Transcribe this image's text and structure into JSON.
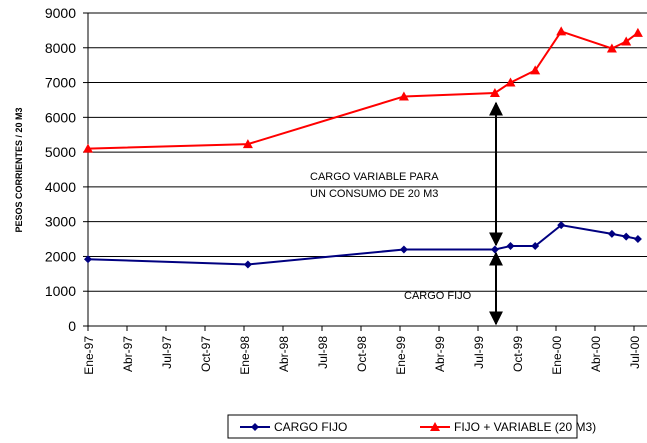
{
  "chart_data": {
    "type": "line",
    "y_label": "PESOS CORRIENTES / 20 M3",
    "annotations": [
      "CARGO  VARIABLE PARA",
      "UN CONSUMO DE 20 M3",
      "CARGO FIJO"
    ],
    "x": [
      0,
      12.3,
      24.3,
      31.3,
      32.5,
      34.4,
      36.4,
      40.3,
      41.4,
      42.3
    ],
    "series": [
      {
        "name": "CARGO FIJO",
        "color": "#000080",
        "marker": "diamond",
        "values": [
          1920,
          1770,
          2200,
          2200,
          2300,
          2300,
          2900,
          2650,
          2570,
          2500
        ]
      },
      {
        "name": "FIJO + VARIABLE (20 M3)",
        "color": "#ff0000",
        "marker": "triangle",
        "values": [
          5100,
          5230,
          6600,
          6700,
          7000,
          7350,
          8470,
          7980,
          8180,
          8430
        ]
      }
    ],
    "xlim": [
      0,
      43
    ],
    "xticks": [
      {
        "value": 0,
        "label": "Ene-97"
      },
      {
        "value": 3,
        "label": "Abr-97"
      },
      {
        "value": 6,
        "label": "Jul-97"
      },
      {
        "value": 9,
        "label": "Oct-97"
      },
      {
        "value": 12,
        "label": "Ene-98"
      },
      {
        "value": 15,
        "label": "Abr-98"
      },
      {
        "value": 18,
        "label": "Jul-98"
      },
      {
        "value": 21,
        "label": "Oct-98"
      },
      {
        "value": 24,
        "label": "Ene-99"
      },
      {
        "value": 27,
        "label": "Abr-99"
      },
      {
        "value": 30,
        "label": "Jul-99"
      },
      {
        "value": 33,
        "label": "Oct-99"
      },
      {
        "value": 36,
        "label": "Ene-00"
      },
      {
        "value": 39,
        "label": "Abr-00"
      },
      {
        "value": 42,
        "label": "Jul-00"
      }
    ],
    "ylim": [
      0,
      9000
    ],
    "yticks": [
      0,
      1000,
      2000,
      3000,
      4000,
      5000,
      6000,
      7000,
      8000,
      9000
    ],
    "grid": true,
    "legend": "bottom"
  }
}
